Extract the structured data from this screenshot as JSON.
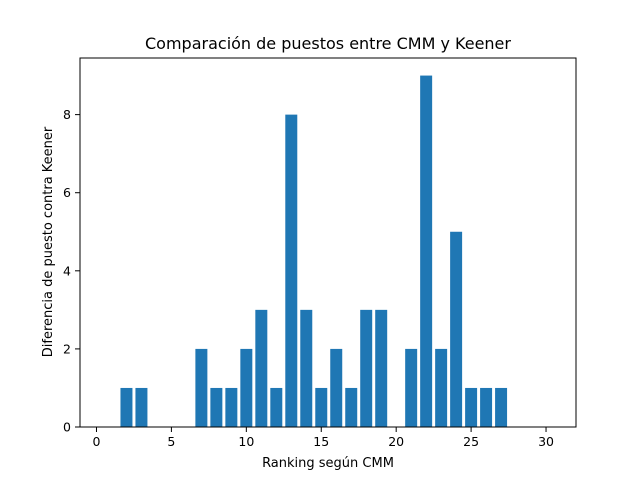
{
  "chart_data": {
    "type": "bar",
    "title": "Comparación de puestos entre CMM y Keener",
    "xlabel": "Ranking según CMM",
    "ylabel": "Diferencia de puesto contra Keener",
    "x": [
      2,
      3,
      7,
      8,
      9,
      10,
      11,
      12,
      13,
      14,
      15,
      16,
      17,
      18,
      19,
      21,
      22,
      23,
      24,
      25,
      26,
      27
    ],
    "values": [
      1,
      1,
      2,
      1,
      1,
      2,
      3,
      1,
      8,
      3,
      1,
      2,
      1,
      3,
      3,
      2,
      9,
      2,
      5,
      1,
      1,
      1
    ],
    "xlim": [
      -1.1,
      32
    ],
    "ylim": [
      0,
      9.45
    ],
    "xticks": [
      0,
      5,
      10,
      15,
      20,
      25,
      30
    ],
    "yticks": [
      0,
      2,
      4,
      6,
      8
    ],
    "bar_color": "#1f77b4",
    "grid": false
  }
}
